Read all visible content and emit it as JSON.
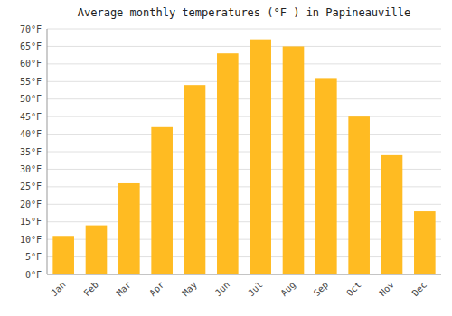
{
  "chart_data": {
    "type": "bar",
    "title": "Average monthly temperatures (°F ) in Papineauville",
    "categories": [
      "Jan",
      "Feb",
      "Mar",
      "Apr",
      "May",
      "Jun",
      "Jul",
      "Aug",
      "Sep",
      "Oct",
      "Nov",
      "Dec"
    ],
    "values": [
      11,
      14,
      26,
      42,
      54,
      63,
      67,
      65,
      56,
      45,
      34,
      18
    ],
    "color": "#FFBB22",
    "ylim": [
      0,
      70
    ],
    "yticks": [
      {
        "value": 0,
        "label": "0°F"
      },
      {
        "value": 5,
        "label": "5°F"
      },
      {
        "value": 10,
        "label": "10°F"
      },
      {
        "value": 15,
        "label": "15°F"
      },
      {
        "value": 20,
        "label": "20°F"
      },
      {
        "value": 25,
        "label": "25°F"
      },
      {
        "value": 30,
        "label": "30°F"
      },
      {
        "value": 35,
        "label": "35°F"
      },
      {
        "value": 40,
        "label": "40°F"
      },
      {
        "value": 45,
        "label": "45°F"
      },
      {
        "value": 50,
        "label": "50°F"
      },
      {
        "value": 55,
        "label": "55°F"
      },
      {
        "value": 60,
        "label": "60°F"
      },
      {
        "value": 65,
        "label": "65°F"
      },
      {
        "value": 70,
        "label": "70°F"
      }
    ],
    "grid": true
  }
}
